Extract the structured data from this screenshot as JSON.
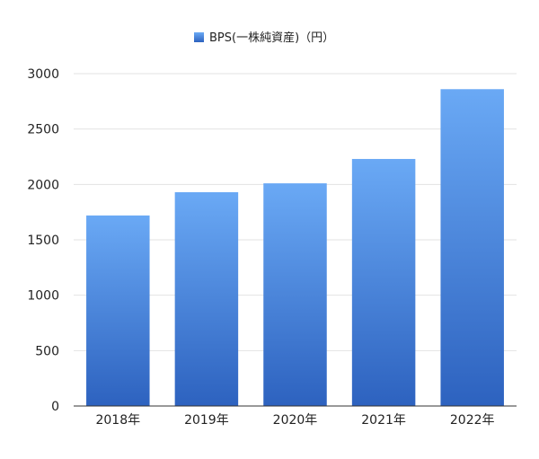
{
  "chart_data": {
    "type": "bar",
    "title": "",
    "xlabel": "",
    "ylabel": "",
    "categories": [
      "2018年",
      "2019年",
      "2020年",
      "2021年",
      "2022年"
    ],
    "series": [
      {
        "name": "BPS(一株純資産)（円）",
        "values": [
          1720,
          1930,
          2010,
          2230,
          2860
        ]
      }
    ],
    "ylim": [
      0,
      3000
    ],
    "yticks": [
      0,
      500,
      1000,
      1500,
      2000,
      2500,
      3000
    ],
    "ytick_labels": [
      "0",
      "500",
      "1000",
      "1500",
      "2000",
      "2500",
      "3000"
    ],
    "grid": true,
    "legend_position": "top-center",
    "colors": {
      "bar_top": "#6aa9f5",
      "bar_bottom": "#2d62bf",
      "grid": "#e3e3e3",
      "axis": "#333333"
    }
  }
}
